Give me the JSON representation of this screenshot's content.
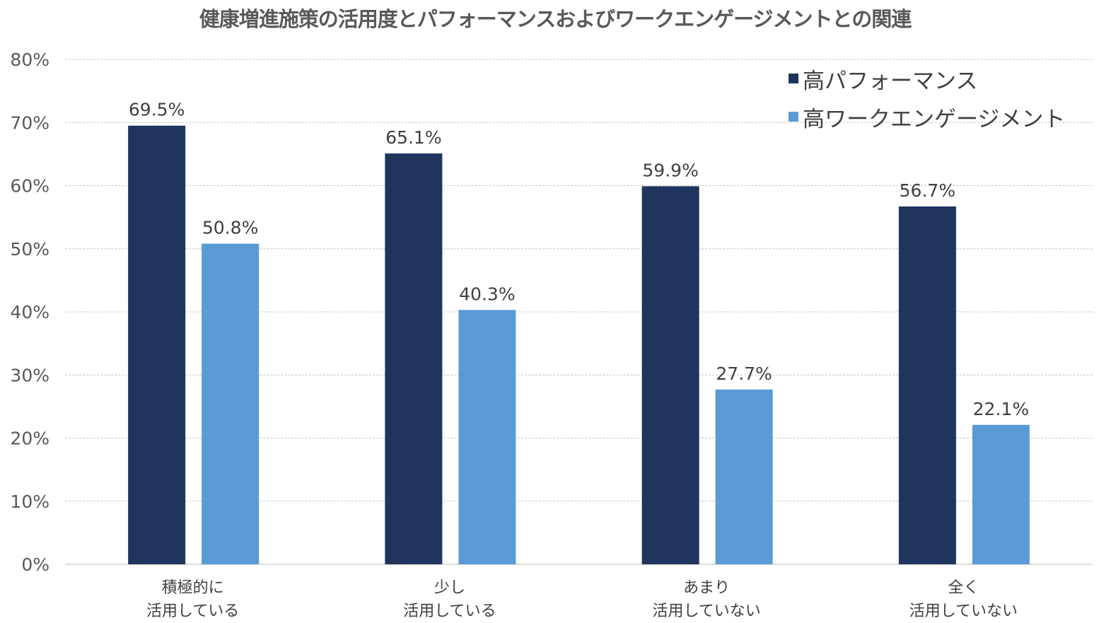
{
  "chart_data": {
    "type": "bar",
    "title": "健康増進施策の活用度とパフォーマンスおよびワークエンゲージメントとの関連",
    "categories": [
      [
        "積極的に",
        "活用している"
      ],
      [
        "少し",
        "活用している"
      ],
      [
        "あまり",
        "活用していない"
      ],
      [
        "全く",
        "活用していない"
      ]
    ],
    "series": [
      {
        "name": "高パフォーマンス",
        "values": [
          69.5,
          65.1,
          59.9,
          56.7
        ],
        "labels": [
          "69.5%",
          "65.1%",
          "59.9%",
          "56.7%"
        ],
        "color": "#1f355e"
      },
      {
        "name": "高ワークエンゲージメント",
        "values": [
          50.8,
          40.3,
          27.7,
          22.1
        ],
        "labels": [
          "50.8%",
          "40.3%",
          "27.7%",
          "22.1%"
        ],
        "color": "#5b9bd5"
      }
    ],
    "ylim": [
      0,
      80
    ],
    "yticks": [
      "0%",
      "10%",
      "20%",
      "30%",
      "40%",
      "50%",
      "60%",
      "70%",
      "80%"
    ],
    "grid": true,
    "legend_position": "top-right"
  }
}
